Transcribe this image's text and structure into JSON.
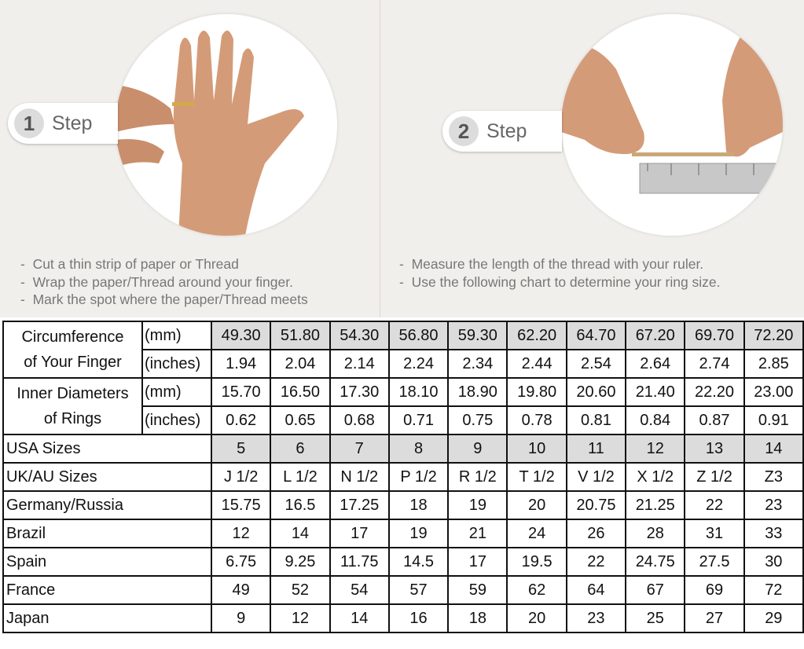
{
  "step1": {
    "number": "1",
    "label": "Step",
    "instructions": [
      "Cut a thin strip of paper or Thread",
      "Wrap the paper/Thread around your finger.",
      "Mark the spot where the paper/Thread meets"
    ]
  },
  "step2": {
    "number": "2",
    "label": "Step",
    "instructions": [
      "Measure the length of the thread with your ruler.",
      "Use the following chart to determine your ring size."
    ]
  },
  "table": {
    "circumference": {
      "label1": "Circumference",
      "label2": "of Your Finger",
      "unit_mm": "(mm)",
      "unit_in": "(inches)",
      "mm": [
        "49.30",
        "51.80",
        "54.30",
        "56.80",
        "59.30",
        "62.20",
        "64.70",
        "67.20",
        "69.70",
        "72.20"
      ],
      "inches": [
        "1.94",
        "2.04",
        "2.14",
        "2.24",
        "2.34",
        "2.44",
        "2.54",
        "2.64",
        "2.74",
        "2.85"
      ]
    },
    "diameter": {
      "label1": "Inner Diameters",
      "label2": "of Rings",
      "unit_mm": "(mm)",
      "unit_in": "(inches)",
      "mm": [
        "15.70",
        "16.50",
        "17.30",
        "18.10",
        "18.90",
        "19.80",
        "20.60",
        "21.40",
        "22.20",
        "23.00"
      ],
      "inches": [
        "0.62",
        "0.65",
        "0.68",
        "0.71",
        "0.75",
        "0.78",
        "0.81",
        "0.84",
        "0.87",
        "0.91"
      ]
    },
    "rows": [
      {
        "label": "USA Sizes",
        "values": [
          "5",
          "6",
          "7",
          "8",
          "9",
          "10",
          "11",
          "12",
          "13",
          "14"
        ]
      },
      {
        "label": "UK/AU Sizes",
        "values": [
          "J 1/2",
          "L 1/2",
          "N 1/2",
          "P 1/2",
          "R 1/2",
          "T 1/2",
          "V 1/2",
          "X 1/2",
          "Z 1/2",
          "Z3"
        ]
      },
      {
        "label": "Germany/Russia",
        "values": [
          "15.75",
          "16.5",
          "17.25",
          "18",
          "19",
          "20",
          "20.75",
          "21.25",
          "22",
          "23"
        ]
      },
      {
        "label": "Brazil",
        "values": [
          "12",
          "14",
          "17",
          "19",
          "21",
          "24",
          "26",
          "28",
          "31",
          "33"
        ]
      },
      {
        "label": "Spain",
        "values": [
          "6.75",
          "9.25",
          "11.75",
          "14.5",
          "17",
          "19.5",
          "22",
          "24.75",
          "27.5",
          "30"
        ]
      },
      {
        "label": "France",
        "values": [
          "49",
          "52",
          "54",
          "57",
          "59",
          "62",
          "64",
          "67",
          "69",
          "72"
        ]
      },
      {
        "label": "Japan",
        "values": [
          "9",
          "12",
          "14",
          "16",
          "18",
          "20",
          "23",
          "25",
          "27",
          "29"
        ]
      }
    ]
  },
  "colors": {
    "highlight": "#dcdcdc",
    "skin": "#d9a07e",
    "background": "#f1efeb"
  }
}
